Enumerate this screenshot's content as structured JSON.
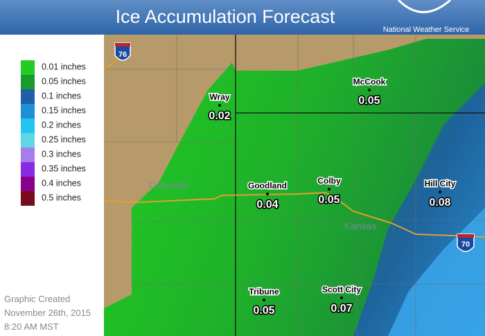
{
  "header": {
    "title": "Ice Accumulation Forecast",
    "agency": "National Weather Service"
  },
  "legend": [
    {
      "label": "0.01 inches",
      "color": "#22cc22"
    },
    {
      "label": "0.05 inches",
      "color": "#1a9a2a"
    },
    {
      "label": "0.1 inches",
      "color": "#1e5fa8"
    },
    {
      "label": "0.15 inches",
      "color": "#1f8fd8"
    },
    {
      "label": "0.2 inches",
      "color": "#22c4f0"
    },
    {
      "label": "0.25 inches",
      "color": "#5fd6e4"
    },
    {
      "label": "0.3 inches",
      "color": "#a77ee8"
    },
    {
      "label": "0.35 inches",
      "color": "#8a2be2"
    },
    {
      "label": "0.4 inches",
      "color": "#8b008b"
    },
    {
      "label": "0.5 inches",
      "color": "#7a0a1e"
    }
  ],
  "cities": [
    {
      "name": "Wray",
      "value": 0.02
    },
    {
      "name": "McCook",
      "value": 0.05
    },
    {
      "name": "Goodland",
      "value": 0.04
    },
    {
      "name": "Colby",
      "value": 0.05
    },
    {
      "name": "Hill City",
      "value": 0.08
    },
    {
      "name": "Tribune",
      "value": 0.05
    },
    {
      "name": "Scott City",
      "value": 0.07
    }
  ],
  "states": [
    "Colorado",
    "Kansas"
  ],
  "interstates": [
    "76",
    "70"
  ],
  "footer": [
    "Graphic Created",
    "November 26th, 2015",
    "8:20 AM MST"
  ]
}
